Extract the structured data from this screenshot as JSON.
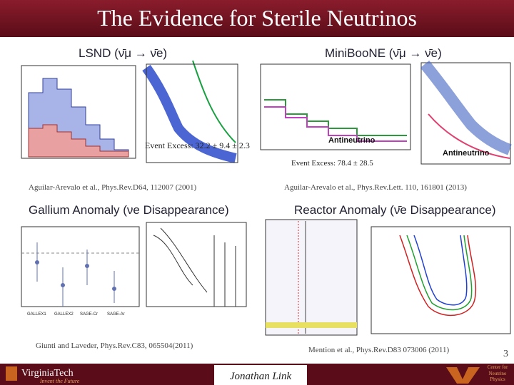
{
  "title": "The Evidence for Sterile Neutrinos",
  "panels": [
    {
      "heading": "LSND (ν̄μ → ν̄e)",
      "excess": "Event Excess: 32.2 ± 9.4 ± 2.3",
      "citation": "Aguilar-Arevalo et al., Phys.Rev.D64, 112007 (2001)"
    },
    {
      "heading": "MiniBooNE (ν̄μ → ν̄e)",
      "excess": "Event Excess: 78.4 ± 28.5",
      "citation": "Aguilar-Arevalo et al., Phys.Rev.Lett. 110, 161801 (2013)",
      "plot_labels": [
        "Antineutrino",
        "Antineutrino"
      ]
    },
    {
      "heading": "Gallium Anomaly (νe Disappearance)",
      "citation": "Giunti and Laveder, Phys.Rev.C83, 065504(2011)",
      "plot_labels": [
        "GALLEX1",
        "GALLEX2",
        "SAGE-Cr",
        "SAGE-Ar"
      ]
    },
    {
      "heading": "Reactor Anomaly (ν̄e Disappearance)",
      "citation": "Mention et al., Phys.Rev.D83 073006 (2011)"
    }
  ],
  "page_number": "3",
  "footer": {
    "logo": "VirginiaTech",
    "tagline": "Invent the Future",
    "author": "Jonathan Link",
    "center": "Center for Neutrino Physics"
  }
}
